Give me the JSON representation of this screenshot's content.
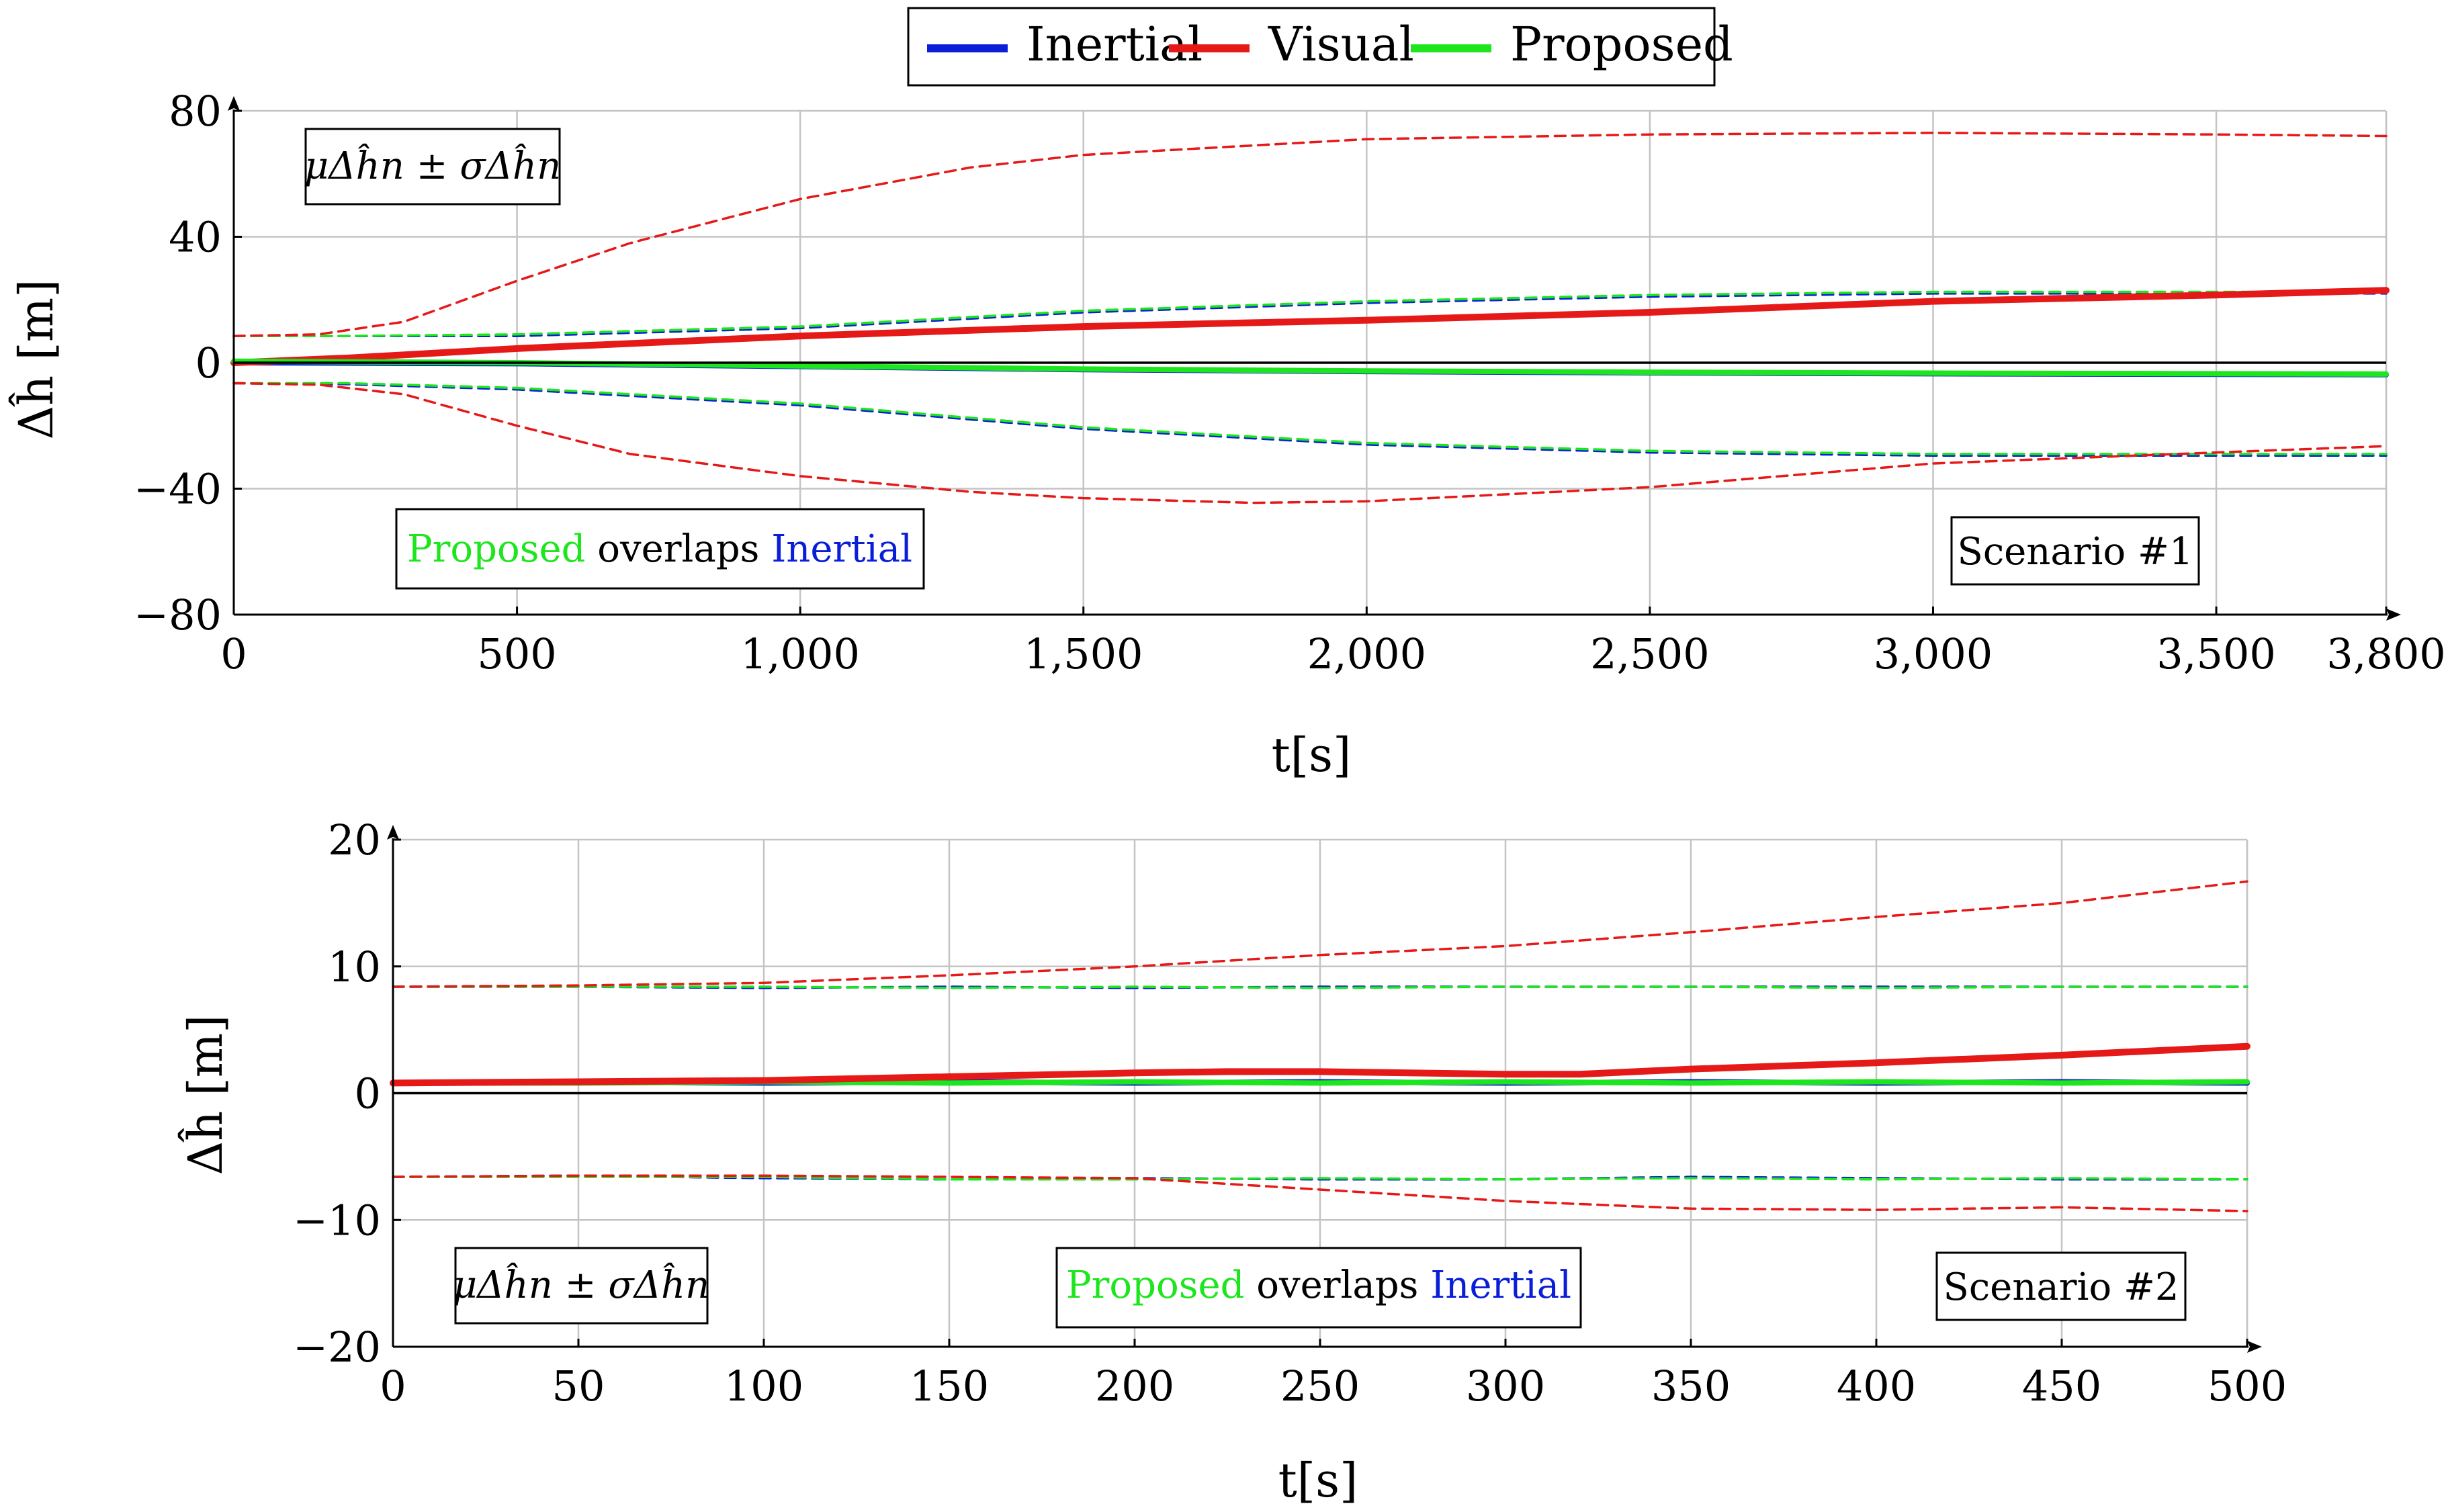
{
  "legend": {
    "entries": [
      {
        "label": "Inertial",
        "color": "#0a1ed8"
      },
      {
        "label": "Visual",
        "color": "#e61919"
      },
      {
        "label": "Proposed",
        "color": "#1ee61e"
      }
    ]
  },
  "chart_data": [
    {
      "type": "line",
      "title": "Scenario #1",
      "xlabel": "t[s]",
      "ylabel": "Δĥ [m]",
      "xlim": [
        0,
        3800
      ],
      "ylim": [
        -80,
        80
      ],
      "xticks": [
        0,
        500,
        1000,
        1500,
        2000,
        2500,
        3000,
        3500,
        3800
      ],
      "xtick_labels": [
        "0",
        "500",
        "1,000",
        "1,500",
        "2,000",
        "2,500",
        "3,000",
        "3,500",
        "3,800"
      ],
      "yticks": [
        80,
        40,
        0,
        -40,
        -80
      ],
      "ytick_labels": [
        "80",
        "40",
        "0",
        "−40",
        "−80"
      ],
      "stat_label": "μΔĥn ± σΔĥn",
      "overlap_note": {
        "green": "Proposed",
        "mid": " overlaps ",
        "blue": "Inertial"
      },
      "series": [
        {
          "name": "Inertial",
          "style": "mean",
          "x": [
            0,
            500,
            1000,
            1500,
            2000,
            2500,
            3000,
            3500,
            3800
          ],
          "y": [
            0,
            -0.3,
            -1.2,
            -2.2,
            -2.8,
            -3.2,
            -3.5,
            -3.7,
            -3.8
          ]
        },
        {
          "name": "Visual",
          "style": "mean",
          "x": [
            0,
            200,
            500,
            1000,
            1500,
            2000,
            2500,
            3000,
            3500,
            3800
          ],
          "y": [
            0,
            1.5,
            4.5,
            8.5,
            11.5,
            13.5,
            16,
            19.5,
            21.5,
            23
          ]
        },
        {
          "name": "Proposed",
          "style": "mean",
          "x": [
            0,
            500,
            1000,
            1500,
            2000,
            2500,
            3000,
            3500,
            3800
          ],
          "y": [
            0.5,
            0,
            -1,
            -2,
            -2.6,
            -3,
            -3.3,
            -3.5,
            -3.6
          ]
        },
        {
          "name": "Inertial",
          "style": "sigma",
          "x": [
            0,
            200,
            500,
            1000,
            1500,
            2000,
            2500,
            3000,
            3500,
            3800
          ],
          "y": [
            8.5,
            8.5,
            8.5,
            11,
            16,
            19,
            21,
            22,
            22,
            22
          ]
        },
        {
          "name": "Inertial",
          "style": "sigma",
          "x": [
            0,
            200,
            500,
            1000,
            1500,
            2000,
            2500,
            3000,
            3500,
            3800
          ],
          "y": [
            -6.5,
            -6.8,
            -8.5,
            -13.5,
            -21,
            -26,
            -28.5,
            -29.5,
            -29.5,
            -29.5
          ]
        },
        {
          "name": "Proposed",
          "style": "sigma",
          "x": [
            0,
            200,
            500,
            1000,
            1500,
            2000,
            2500,
            3000,
            3500,
            3800
          ],
          "y": [
            8.5,
            8.5,
            9,
            11.5,
            16.5,
            19.5,
            21.5,
            22.5,
            22.5,
            22.5
          ]
        },
        {
          "name": "Proposed",
          "style": "sigma",
          "x": [
            0,
            200,
            500,
            1000,
            1500,
            2000,
            2500,
            3000,
            3500,
            3800
          ],
          "y": [
            -6.5,
            -6.5,
            -8,
            -13,
            -20.5,
            -25.5,
            -28,
            -29,
            -29,
            -29
          ]
        },
        {
          "name": "Visual",
          "style": "sigma",
          "x": [
            0,
            150,
            300,
            500,
            700,
            1000,
            1300,
            1500,
            2000,
            2500,
            3000,
            3500,
            3800
          ],
          "y": [
            8.5,
            9,
            13,
            26,
            38,
            52,
            62,
            66,
            71,
            72.5,
            73,
            72.5,
            72
          ]
        },
        {
          "name": "Visual",
          "style": "sigma",
          "x": [
            0,
            150,
            300,
            500,
            700,
            1000,
            1300,
            1500,
            1800,
            2000,
            2500,
            3000,
            3500,
            3800
          ],
          "y": [
            -6.5,
            -7,
            -10,
            -20,
            -29,
            -36,
            -41,
            -43,
            -44.5,
            -44,
            -39.5,
            -32,
            -28.5,
            -26.5
          ]
        }
      ]
    },
    {
      "type": "line",
      "title": "Scenario #2",
      "xlabel": "t[s]",
      "ylabel": "Δĥ [m]",
      "xlim": [
        0,
        500
      ],
      "ylim": [
        -20,
        20
      ],
      "xticks": [
        0,
        50,
        100,
        150,
        200,
        250,
        300,
        350,
        400,
        450,
        500
      ],
      "xtick_labels": [
        "0",
        "50",
        "100",
        "150",
        "200",
        "250",
        "300",
        "350",
        "400",
        "450",
        "500"
      ],
      "yticks": [
        20,
        10,
        0,
        -10,
        -20
      ],
      "ytick_labels": [
        "20",
        "10",
        "0",
        "−10",
        "−20"
      ],
      "stat_label": "μΔĥn ± σΔĥn",
      "overlap_note": {
        "green": "Proposed",
        "mid": " overlaps ",
        "blue": "Inertial"
      },
      "series": [
        {
          "name": "Inertial",
          "style": "mean",
          "x": [
            0,
            50,
            100,
            150,
            200,
            250,
            300,
            350,
            400,
            450,
            500
          ],
          "y": [
            0.8,
            0.9,
            0.8,
            0.9,
            0.8,
            0.9,
            0.8,
            0.9,
            0.8,
            0.9,
            0.8
          ]
        },
        {
          "name": "Proposed",
          "style": "mean",
          "x": [
            0,
            50,
            100,
            150,
            200,
            250,
            300,
            350,
            400,
            450,
            500
          ],
          "y": [
            0.8,
            0.8,
            0.9,
            0.8,
            0.9,
            0.8,
            0.9,
            0.8,
            0.9,
            0.8,
            0.9
          ]
        },
        {
          "name": "Visual",
          "style": "mean",
          "x": [
            0,
            50,
            100,
            150,
            200,
            225,
            250,
            300,
            320,
            350,
            400,
            450,
            500
          ],
          "y": [
            0.8,
            0.9,
            1.0,
            1.3,
            1.6,
            1.7,
            1.7,
            1.5,
            1.5,
            1.9,
            2.4,
            3.0,
            3.7
          ]
        },
        {
          "name": "Inertial",
          "style": "sigma",
          "x": [
            0,
            50,
            100,
            150,
            200,
            250,
            300,
            350,
            400,
            450,
            500
          ],
          "y": [
            8.4,
            8.4,
            8.3,
            8.4,
            8.3,
            8.4,
            8.4,
            8.4,
            8.4,
            8.4,
            8.4
          ]
        },
        {
          "name": "Inertial",
          "style": "sigma",
          "x": [
            0,
            50,
            100,
            150,
            200,
            250,
            300,
            350,
            400,
            450,
            500
          ],
          "y": [
            -6.6,
            -6.5,
            -6.7,
            -6.8,
            -6.7,
            -6.8,
            -6.8,
            -6.6,
            -6.7,
            -6.8,
            -6.8
          ]
        },
        {
          "name": "Proposed",
          "style": "sigma",
          "x": [
            0,
            50,
            100,
            150,
            200,
            250,
            300,
            350,
            400,
            450,
            500
          ],
          "y": [
            8.4,
            8.4,
            8.4,
            8.3,
            8.4,
            8.3,
            8.4,
            8.4,
            8.3,
            8.4,
            8.4
          ]
        },
        {
          "name": "Proposed",
          "style": "sigma",
          "x": [
            0,
            50,
            100,
            150,
            200,
            250,
            300,
            350,
            400,
            450,
            500
          ],
          "y": [
            -6.6,
            -6.6,
            -6.6,
            -6.8,
            -6.8,
            -6.7,
            -6.8,
            -6.7,
            -6.8,
            -6.7,
            -6.8
          ]
        },
        {
          "name": "Visual",
          "style": "sigma",
          "x": [
            0,
            50,
            100,
            150,
            200,
            250,
            300,
            350,
            400,
            450,
            500
          ],
          "y": [
            8.4,
            8.5,
            8.7,
            9.3,
            10.0,
            10.9,
            11.6,
            12.7,
            13.9,
            15.0,
            16.7
          ]
        },
        {
          "name": "Visual",
          "style": "sigma",
          "x": [
            0,
            50,
            100,
            150,
            200,
            250,
            300,
            350,
            400,
            450,
            500
          ],
          "y": [
            -6.6,
            -6.5,
            -6.5,
            -6.6,
            -6.7,
            -7.6,
            -8.5,
            -9.1,
            -9.2,
            -9.0,
            -9.3
          ]
        }
      ]
    }
  ]
}
